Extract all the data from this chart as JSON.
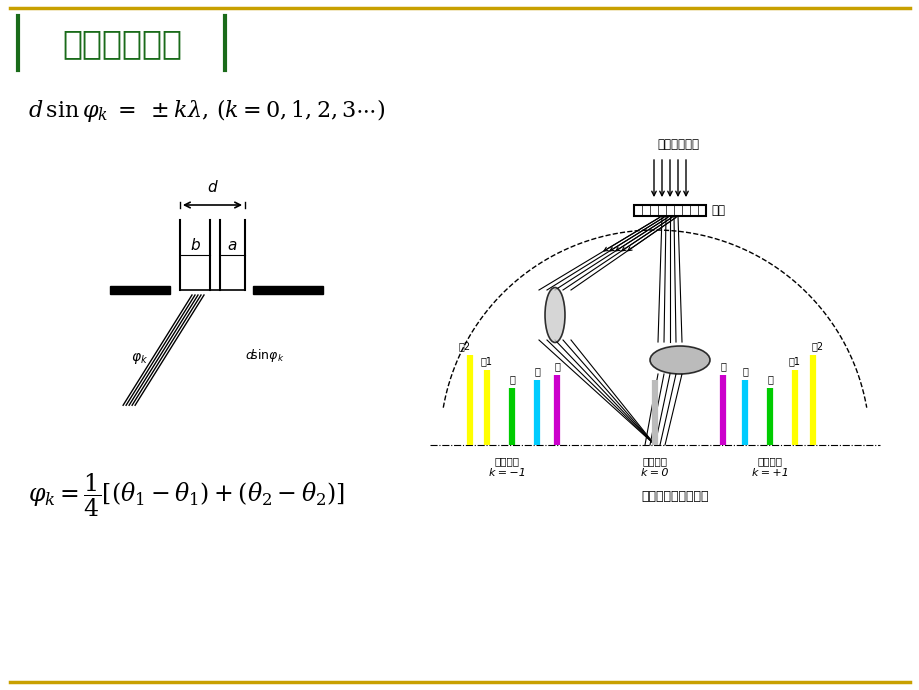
{
  "title": "【实验原理】",
  "title_color": "#1a6b1a",
  "title_border_color": "#c8a000",
  "bg_color": "#ffffff",
  "label_guangsha": "光栌",
  "label_shuiyin": "水銀灯入射光",
  "label_diagram": "光栌衍射光谱示意图",
  "label_central": "中央明纹",
  "label_k0": "k＝0",
  "label_minus1": "一级明纹",
  "label_km1": "k＝－1",
  "label_plus1": "一级明纹",
  "label_kp1": "k＝＋1",
  "label_huang2": "黄2",
  "label_huang1": "黄1",
  "label_lv": "绿",
  "label_lan": "蓝",
  "label_zi": "紫",
  "colors": {
    "yellow": "#ffff00",
    "green": "#00cc00",
    "cyan": "#00ccff",
    "magenta": "#cc00cc",
    "gray": "#cccccc",
    "black": "#000000"
  },
  "border_gold": "#c8a000",
  "title_green": "#1a6b1a"
}
